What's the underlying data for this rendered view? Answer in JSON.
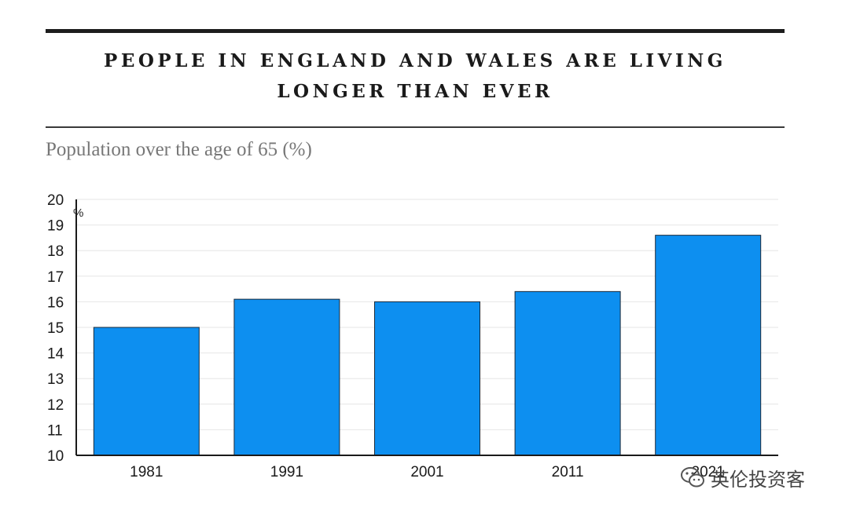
{
  "chart_data": {
    "type": "bar",
    "title": "PEOPLE IN ENGLAND AND WALES ARE LIVING LONGER THAN EVER",
    "subtitle": "Population over the age of 65 (%)",
    "categories": [
      "1981",
      "1991",
      "2001",
      "2011",
      "2021"
    ],
    "values": [
      15.0,
      16.1,
      16.0,
      16.4,
      18.6
    ],
    "ylim": [
      10,
      20
    ],
    "yticks": [
      10,
      11,
      12,
      13,
      14,
      15,
      16,
      17,
      18,
      19,
      20
    ],
    "yunit": "%",
    "grid": true,
    "bar_color": "#0d8ff0"
  },
  "watermark": {
    "text": "英伦投资客",
    "icon": "wechat-icon"
  }
}
